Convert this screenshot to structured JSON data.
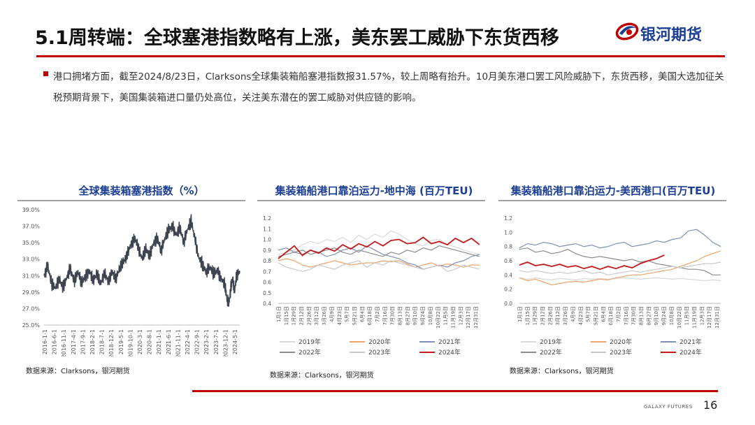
{
  "header": {
    "title": "5.1周转端：全球塞港指数略有上涨，美东罢工威胁下东货西移",
    "logo_text": "银河期货",
    "logo_icon": "galaxy-swirl-logo"
  },
  "summary": {
    "text": "港口拥堵方面，截至2024/8/23日，Clarksons全球集装箱船塞港指数报31.57%，较上周略有抬升。10月美东港口罢工风险威胁下，东货西移，美国大选加征关税预期背景下，美国集装箱进口量仍处高位，关注美东潜在的罢工威胁对供应链的影响。"
  },
  "colors": {
    "accent_red": "#c00000",
    "brand_blue": "#1c3f94",
    "title_blue": "#1c3f94"
  },
  "chart_data": [
    {
      "type": "line",
      "title": "全球集装箱塞港指数（%）",
      "source": "数据来源：Clarksons，银河期货",
      "ylim": [
        25.0,
        39.0
      ],
      "y_ticks": [
        "39.0%",
        "37.0%",
        "35.0%",
        "33.0%",
        "31.0%",
        "29.0%",
        "27.0%",
        "25.0%"
      ],
      "x_ticks": [
        "2016-1-1",
        "2016-6-1",
        "2016-11-1",
        "2017-4-1",
        "2017-9-1",
        "2018-2-1",
        "2018-7-1",
        "2018-12-1",
        "2019-5-1",
        "2019-10-1",
        "2020-3-1",
        "2020-8-1",
        "2021-1-1",
        "2021-6-1",
        "2021-11-1",
        "2022-4-1",
        "2022-9-1",
        "2023-2-1",
        "2023-7-1",
        "2023-12-1",
        "2024-5-1"
      ],
      "series": [
        {
          "color": "#3d4450",
          "points": [
            [
              "2016-01-01",
              31.0
            ],
            [
              "2016-03-01",
              32.2
            ],
            [
              "2016-05-01",
              30.0
            ],
            [
              "2016-07-01",
              29.4
            ],
            [
              "2016-09-01",
              30.6
            ],
            [
              "2016-11-01",
              29.6
            ],
            [
              "2017-01-01",
              30.8
            ],
            [
              "2017-03-01",
              31.9
            ],
            [
              "2017-05-01",
              30.2
            ],
            [
              "2017-07-01",
              31.4
            ],
            [
              "2017-09-01",
              30.1
            ],
            [
              "2017-11-01",
              31.0
            ],
            [
              "2018-01-01",
              31.6
            ],
            [
              "2018-03-01",
              30.4
            ],
            [
              "2018-05-01",
              31.2
            ],
            [
              "2018-07-01",
              30.0
            ],
            [
              "2018-09-01",
              31.3
            ],
            [
              "2018-11-01",
              30.3
            ],
            [
              "2019-01-01",
              31.5
            ],
            [
              "2019-03-01",
              30.6
            ],
            [
              "2019-05-01",
              31.8
            ],
            [
              "2019-07-01",
              32.6
            ],
            [
              "2019-09-01",
              33.5
            ],
            [
              "2019-11-01",
              34.8
            ],
            [
              "2020-01-01",
              35.6
            ],
            [
              "2020-03-01",
              34.4
            ],
            [
              "2020-05-01",
              33.0
            ],
            [
              "2020-07-01",
              34.2
            ],
            [
              "2020-09-01",
              33.4
            ],
            [
              "2020-11-01",
              35.0
            ],
            [
              "2021-01-01",
              35.6
            ],
            [
              "2021-03-01",
              34.0
            ],
            [
              "2021-05-01",
              35.4
            ],
            [
              "2021-07-01",
              36.5
            ],
            [
              "2021-09-01",
              37.0
            ],
            [
              "2021-11-01",
              36.0
            ],
            [
              "2022-01-01",
              36.9
            ],
            [
              "2022-03-01",
              35.0
            ],
            [
              "2022-05-01",
              36.5
            ],
            [
              "2022-07-01",
              37.6
            ],
            [
              "2022-09-01",
              35.4
            ],
            [
              "2022-11-01",
              33.2
            ],
            [
              "2023-01-01",
              32.4
            ],
            [
              "2023-03-01",
              31.4
            ],
            [
              "2023-05-01",
              32.0
            ],
            [
              "2023-07-01",
              31.2
            ],
            [
              "2023-09-01",
              31.6
            ],
            [
              "2023-11-01",
              30.6
            ],
            [
              "2024-01-01",
              29.8
            ],
            [
              "2024-02-01",
              28.0
            ],
            [
              "2024-03-01",
              27.6
            ],
            [
              "2024-04-01",
              29.5
            ],
            [
              "2024-05-01",
              30.6
            ],
            [
              "2024-06-01",
              29.2
            ],
            [
              "2024-07-01",
              31.0
            ],
            [
              "2024-08-23",
              31.57
            ]
          ]
        }
      ]
    },
    {
      "type": "line",
      "title": "集装箱船港口靠泊运力-地中海 (百万TEU)",
      "source": "数据来源：Clarksons，银河期货",
      "ylim": [
        0.4,
        1.2
      ],
      "y_ticks": [
        "1.2",
        "1.1",
        "1.0",
        "0.9",
        "0.8",
        "0.7",
        "0.6",
        "0.5",
        "0.4"
      ],
      "x_ticks": [
        "1月1日",
        "1月15日",
        "1月29日",
        "2月12日",
        "2月26日",
        "3月12日",
        "3月26日",
        "4月9日",
        "4月23日",
        "5月7日",
        "5月21日",
        "6月4日",
        "6月18日",
        "7月2日",
        "7月16日",
        "7月30日",
        "8月13日",
        "8月27日",
        "9月10日",
        "9月24日",
        "10月8日",
        "10月22日",
        "11月5日",
        "11月19日",
        "12月3日",
        "12月17日",
        "12月31日"
      ],
      "series": [
        {
          "name": "2019年",
          "color": "#d9d9d9",
          "values": [
            0.86,
            0.88,
            0.9,
            0.95,
            0.98,
            0.96,
            1.0,
            0.98,
            1.02,
            0.97,
            1.04,
            1.0,
            1.05,
            1.02,
            1.08,
            1.05,
            1.0,
            0.96,
            0.94,
            0.99,
            1.0,
            0.95,
            0.93,
            0.9,
            0.88,
            0.86
          ]
        },
        {
          "name": "2020年",
          "color": "#f0a468",
          "values": [
            0.8,
            0.82,
            0.8,
            0.76,
            0.74,
            0.76,
            0.78,
            0.8,
            0.78,
            0.76,
            0.77,
            0.78,
            0.78,
            0.8,
            0.79,
            0.8,
            0.77,
            0.74,
            0.76,
            0.78,
            0.75,
            0.77,
            0.76,
            0.74,
            0.76,
            0.76
          ]
        },
        {
          "name": "2021年",
          "color": "#8090b8",
          "values": [
            0.9,
            0.92,
            0.88,
            0.86,
            0.9,
            0.88,
            0.84,
            0.86,
            0.9,
            0.92,
            0.88,
            0.94,
            0.9,
            0.86,
            0.84,
            0.82,
            0.78,
            0.76,
            0.72,
            0.74,
            0.76,
            0.74,
            0.78,
            0.8,
            0.84,
            0.86
          ]
        },
        {
          "name": "2022年",
          "color": "#8c8c8c",
          "values": [
            0.84,
            0.86,
            0.88,
            0.9,
            0.86,
            0.88,
            0.9,
            0.92,
            0.88,
            0.86,
            0.9,
            0.88,
            0.86,
            0.84,
            0.88,
            0.86,
            0.9,
            0.88,
            0.92,
            0.9,
            0.94,
            0.92,
            0.9,
            0.88,
            0.86,
            0.84
          ]
        },
        {
          "name": "2023年",
          "color": "#c8c8c8",
          "values": [
            0.78,
            0.74,
            0.72,
            0.7,
            0.72,
            0.76,
            0.74,
            0.72,
            0.76,
            0.78,
            0.8,
            0.74,
            0.78,
            0.76,
            0.8,
            0.78,
            0.76,
            0.74,
            0.72,
            0.74,
            0.76,
            0.7,
            0.72,
            0.76,
            0.74,
            0.72
          ]
        },
        {
          "name": "2024年",
          "color": "#c41a1a",
          "values": [
            0.82,
            0.88,
            0.94,
            0.85,
            0.9,
            0.87,
            0.92,
            0.89,
            0.95,
            0.91,
            0.96,
            0.93,
            0.98,
            0.94,
            0.99,
            1.0,
            0.96,
            0.97,
            1.02,
            0.96,
            0.98,
            0.95,
            1.01,
            0.97,
            1.01,
            0.95
          ]
        }
      ]
    },
    {
      "type": "line",
      "title": "集装箱船港口靠泊运力-美西港口(百万TEU)",
      "source": "数据来源：Clarksons，银河期货",
      "ylim": [
        0.0,
        1.2
      ],
      "y_ticks": [
        "1.2",
        "1.0",
        "0.8",
        "0.6",
        "0.4",
        "0.2",
        "0.0"
      ],
      "x_ticks": [
        "1月1日",
        "1月15日",
        "1月29日",
        "2月12日",
        "2月26日",
        "3月12日",
        "3月26日",
        "4月9日",
        "4月23日",
        "5月7日",
        "5月21日",
        "6月4日",
        "6月18日",
        "7月2日",
        "7月16日",
        "7月30日",
        "8月13日",
        "8月27日",
        "9月10日",
        "9月24日",
        "10月8日",
        "10月22日",
        "11月5日",
        "11月19日",
        "12月3日",
        "12月17日",
        "12月31日"
      ],
      "series": [
        {
          "name": "2019年",
          "color": "#d9d9d9",
          "values": [
            0.36,
            0.34,
            0.36,
            0.34,
            0.33,
            0.35,
            0.34,
            0.33,
            0.35,
            0.34,
            0.35,
            0.34,
            0.35,
            0.36,
            0.35,
            0.34,
            0.35,
            0.36,
            0.35,
            0.34,
            0.35,
            0.34,
            0.33,
            0.32,
            0.33,
            0.32
          ]
        },
        {
          "name": "2020年",
          "color": "#f0a468",
          "values": [
            0.36,
            0.32,
            0.34,
            0.3,
            0.26,
            0.28,
            0.3,
            0.31,
            0.3,
            0.32,
            0.34,
            0.33,
            0.36,
            0.38,
            0.4,
            0.4,
            0.42,
            0.44,
            0.46,
            0.48,
            0.52,
            0.56,
            0.6,
            0.66,
            0.7,
            0.74
          ]
        },
        {
          "name": "2021年",
          "color": "#8090b8",
          "values": [
            0.78,
            0.84,
            0.82,
            0.86,
            0.84,
            0.8,
            0.82,
            0.84,
            0.8,
            0.82,
            0.78,
            0.8,
            0.84,
            0.86,
            0.8,
            0.82,
            0.84,
            0.88,
            0.86,
            0.9,
            0.92,
            1.02,
            1.04,
            0.96,
            0.86,
            0.8
          ]
        },
        {
          "name": "2022年",
          "color": "#8c8c8c",
          "values": [
            0.76,
            0.78,
            0.72,
            0.74,
            0.7,
            0.72,
            0.76,
            0.7,
            0.66,
            0.64,
            0.66,
            0.64,
            0.62,
            0.6,
            0.62,
            0.58,
            0.6,
            0.56,
            0.54,
            0.52,
            0.5,
            0.48,
            0.48,
            0.46,
            0.4,
            0.4
          ]
        },
        {
          "name": "2023年",
          "color": "#c8c8c8",
          "values": [
            0.46,
            0.44,
            0.46,
            0.44,
            0.42,
            0.44,
            0.42,
            0.44,
            0.46,
            0.42,
            0.44,
            0.4,
            0.42,
            0.44,
            0.46,
            0.44,
            0.46,
            0.48,
            0.5,
            0.52,
            0.5,
            0.52,
            0.54,
            0.56,
            0.56,
            0.58
          ]
        },
        {
          "name": "2024年",
          "color": "#c41a1a",
          "values": [
            0.54,
            0.58,
            0.53,
            0.55,
            0.52,
            0.55,
            0.51,
            0.53,
            0.49,
            0.52,
            0.48,
            0.52,
            0.49,
            0.53,
            0.5,
            0.56,
            0.6,
            0.63,
            0.68
          ]
        }
      ]
    }
  ],
  "footer": {
    "brand": "GALAXY FUTURES",
    "page_number": "16"
  }
}
